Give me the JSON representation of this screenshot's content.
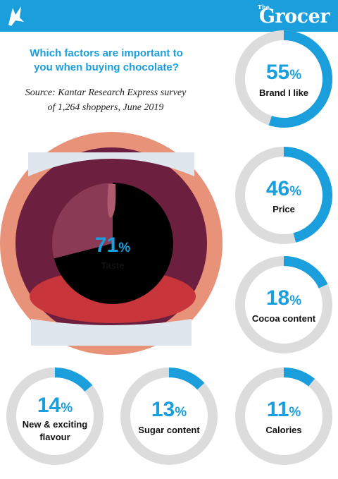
{
  "header": {
    "brand_the": "The",
    "brand_name": "Grocer"
  },
  "question": "Which factors are important to you when buying chocolate?",
  "source": "Source: Kantar Research Express survey of 1,264 shoppers, June 2019",
  "colors": {
    "accent": "#1a9fdc",
    "track": "#dcdcdc",
    "lip": "#e8927a",
    "mouth": "#6d1f3f",
    "tongue": "#c8363c",
    "teeth": "#dfe6ee"
  },
  "icons": {
    "logo": "bird-logo-icon"
  },
  "chart_data": {
    "type": "pie",
    "unit": "%",
    "categories": [
      "Taste",
      "Brand I like",
      "Price",
      "Cocoa content",
      "New & exciting flavour",
      "Sugar content",
      "Calories"
    ],
    "values": [
      71,
      55,
      46,
      18,
      14,
      13,
      11
    ],
    "labels": [
      "71%",
      "55%",
      "46%",
      "18%",
      "14%",
      "13%",
      "11%"
    ],
    "label_lines": [
      [
        "Taste"
      ],
      [
        "Brand I like"
      ],
      [
        "Price"
      ],
      [
        "Cocoa content"
      ],
      [
        "New & exciting",
        "flavour"
      ],
      [
        "Sugar content"
      ],
      [
        "Calories"
      ]
    ]
  }
}
